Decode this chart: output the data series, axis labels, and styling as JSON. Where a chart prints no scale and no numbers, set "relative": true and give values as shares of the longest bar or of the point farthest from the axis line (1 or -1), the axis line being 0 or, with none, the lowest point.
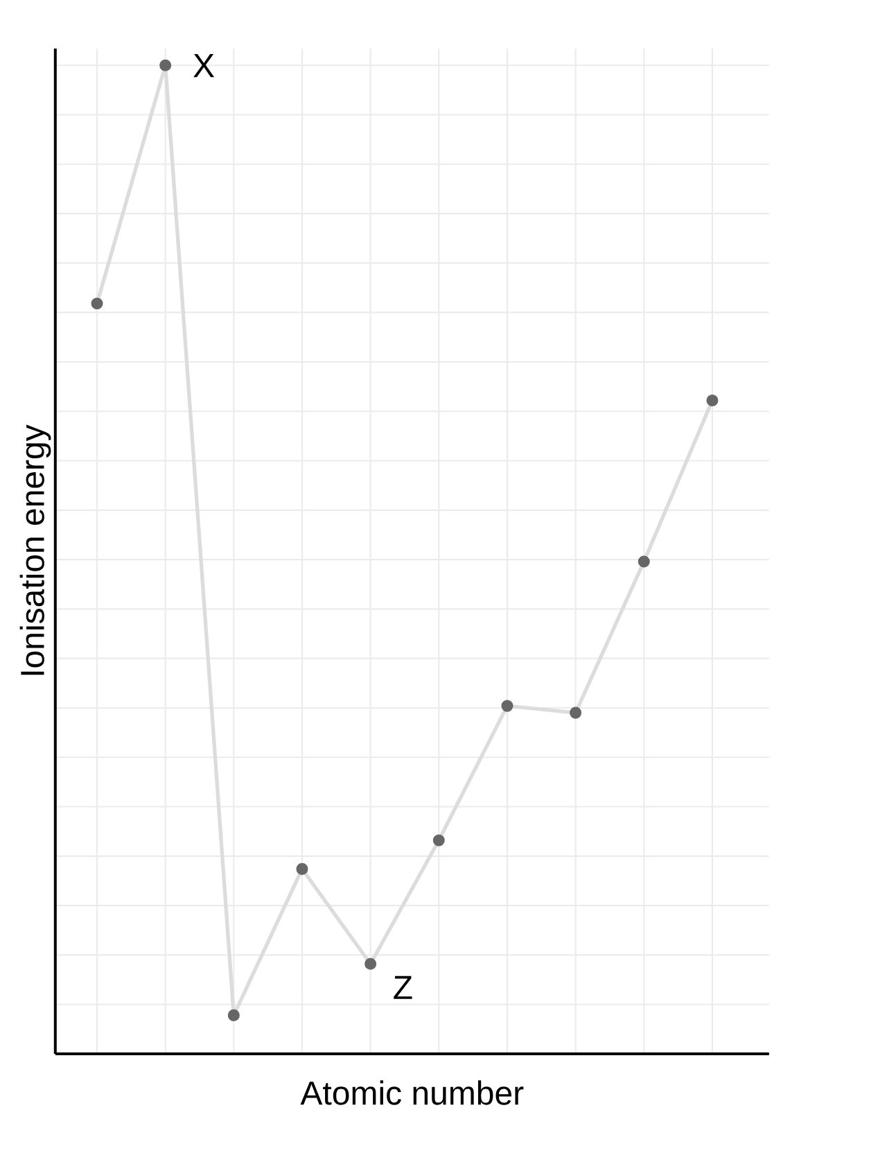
{
  "chart_data": {
    "type": "line",
    "relative": true,
    "xlabel": "Atomic number",
    "ylabel": "Ionisation energy",
    "categories": [
      null,
      null,
      null,
      null,
      null,
      null,
      null,
      null,
      null,
      null
    ],
    "series": [
      {
        "color": "#dcdcdc",
        "values": [
          0.759,
          1.0,
          0.039,
          0.187,
          0.091,
          0.216,
          0.352,
          0.345,
          0.498,
          0.661
        ]
      }
    ],
    "marker": "circle",
    "grid": true,
    "annotations": [
      "X",
      "Z"
    ]
  }
}
